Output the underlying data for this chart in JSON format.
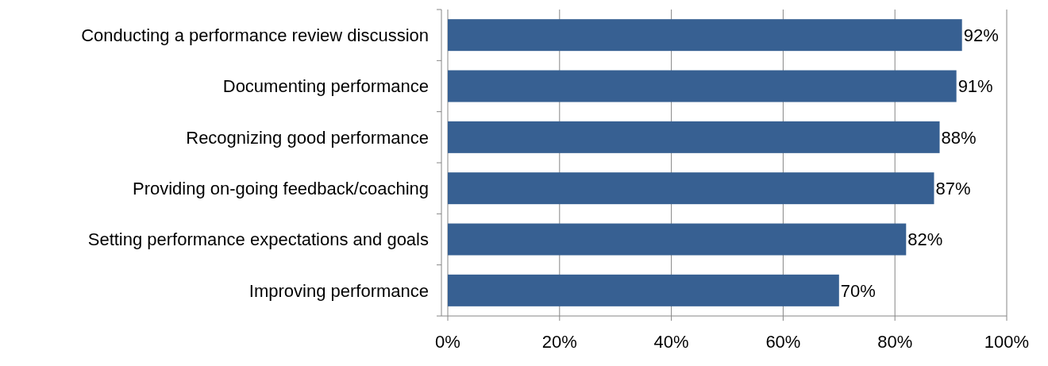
{
  "chart_data": {
    "type": "bar",
    "orientation": "horizontal",
    "categories": [
      "Conducting a performance review discussion",
      "Documenting performance",
      "Recognizing good performance",
      "Providing on-going feedback/coaching",
      "Setting performance expectations and goals",
      "Improving performance"
    ],
    "values": [
      92,
      91,
      88,
      87,
      82,
      70
    ],
    "value_labels": [
      "92%",
      "91%",
      "88%",
      "87%",
      "82%",
      "70%"
    ],
    "color": "#376092",
    "xlim": [
      0,
      100
    ],
    "xticks": [
      {
        "value": 0,
        "label": "0%"
      },
      {
        "value": 20,
        "label": "20%"
      },
      {
        "value": 40,
        "label": "40%"
      },
      {
        "value": 60,
        "label": "60%"
      },
      {
        "value": 80,
        "label": "80%"
      },
      {
        "value": 100,
        "label": "100%"
      }
    ],
    "grid": "x"
  }
}
